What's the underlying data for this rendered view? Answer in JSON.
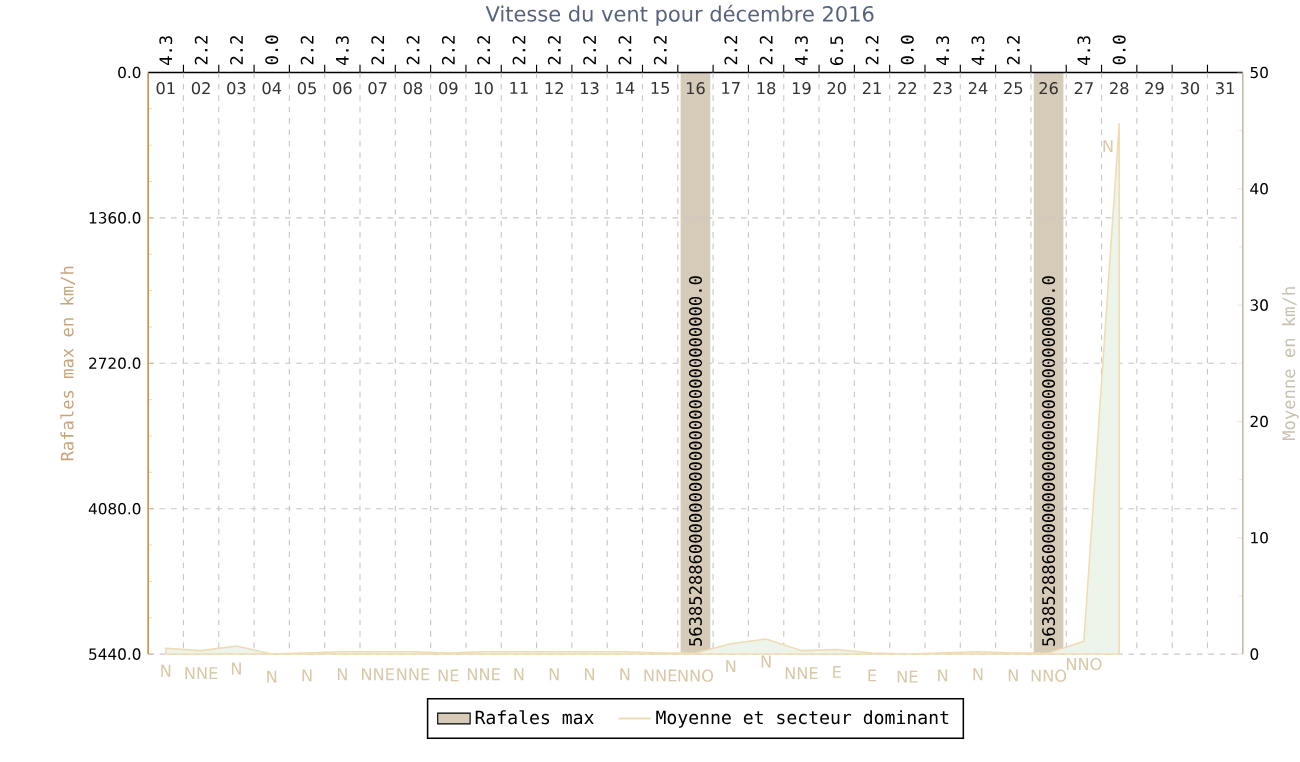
{
  "chart_data": {
    "type": "bar",
    "title": "Vitesse du vent pour décembre 2016",
    "ylabel": "Rafales max en km/h",
    "y2label": "Moyenne en km/h",
    "categories": [
      "01",
      "02",
      "03",
      "04",
      "05",
      "06",
      "07",
      "08",
      "09",
      "10",
      "11",
      "12",
      "13",
      "14",
      "15",
      "16",
      "17",
      "18",
      "19",
      "20",
      "21",
      "22",
      "23",
      "24",
      "25",
      "26",
      "27",
      "28",
      "29",
      "30",
      "31"
    ],
    "series": [
      {
        "name": "Rafales max",
        "color": "#d6cbb8",
        "values": [
          4.3,
          2.2,
          2.2,
          0.0,
          2.2,
          4.3,
          2.2,
          2.2,
          2.2,
          2.2,
          2.2,
          2.2,
          2.2,
          2.2,
          2.2,
          5440,
          2.2,
          2.2,
          4.3,
          6.5,
          2.2,
          0.0,
          4.3,
          4.3,
          2.2,
          5440,
          4.3,
          0.0,
          null,
          null,
          null
        ],
        "value_labels": [
          "4.3",
          "2.2",
          "2.2",
          "0.0",
          "2.2",
          "4.3",
          "2.2",
          "2.2",
          "2.2",
          "2.2",
          "2.2",
          "2.2",
          "2.2",
          "2.2",
          "2.2",
          null,
          "2.2",
          "2.2",
          "4.3",
          "6.5",
          "2.2",
          "0.0",
          "4.3",
          "4.3",
          "2.2",
          null,
          "4.3",
          "0.0",
          null,
          null,
          null
        ]
      },
      {
        "name": "Moyenne et secteur dominant",
        "type": "area",
        "axis": "y2",
        "color": "#efdcb2",
        "values": [
          0.5,
          0.3,
          0.7,
          0,
          0.1,
          0.2,
          0.2,
          0.2,
          0.1,
          0.2,
          0.2,
          0.2,
          0.2,
          0.2,
          0.1,
          0.1,
          0.9,
          1.3,
          0.3,
          0.4,
          0.1,
          0,
          0.1,
          0.2,
          0.1,
          0.1,
          1.1,
          45.6,
          null,
          null,
          null
        ]
      }
    ],
    "ylim": [
      5440,
      0
    ],
    "yticks": [
      {
        "value": 0,
        "label": "0.0"
      },
      {
        "value": 1360,
        "label": "1360.0"
      },
      {
        "value": 2720,
        "label": "2720.0"
      },
      {
        "value": 4080,
        "label": "4080.0"
      },
      {
        "value": 5440,
        "label": "5440.0"
      }
    ],
    "y2lim": [
      0,
      50
    ],
    "y2ticks": [
      0,
      10,
      20,
      30,
      40,
      50
    ],
    "grid": true,
    "legend": "bottom",
    "annotations": [
      "N",
      "NNE",
      "N",
      "N",
      "N",
      "N",
      "NNE",
      "NNE",
      "NE",
      "NNE",
      "N",
      "N",
      "N",
      "N",
      "NNE",
      "NNO",
      "N",
      "N",
      "NNE",
      "E",
      "E",
      "NE",
      "N",
      "N",
      "N",
      "NNO",
      "NNO",
      "N",
      {
        "text": "5638528860000000000000000000000000.0",
        "x": "16",
        "y": 5440
      },
      {
        "text": "5638528860000000000000000000000000.0",
        "x": "26",
        "y": 5440
      }
    ]
  }
}
